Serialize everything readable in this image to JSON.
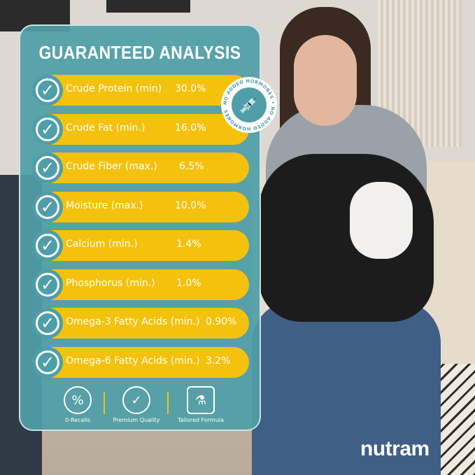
{
  "title": "GUARANTEED ANALYSIS",
  "rows": [
    {
      "label": "Crude Protein (min)",
      "value": "30.0%"
    },
    {
      "label": "Crude Fat (min.)",
      "value": "16.0%"
    },
    {
      "label": "Crude Fiber (max.)",
      "value": "6.5%"
    },
    {
      "label": "Moisture (max.)",
      "value": "10.0%"
    },
    {
      "label": "Calcium (min.)",
      "value": "1.4%"
    },
    {
      "label": "Phosphorus (min.)",
      "value": "1.0%"
    },
    {
      "label": "Omega-3 Fatty Acids (min.)",
      "value": "0.90%"
    },
    {
      "label": "Omega-6 Fatty Acids (min.)",
      "value": "3.2%"
    }
  ],
  "badge": {
    "text": "NO ADDED HORMONES",
    "icon": "syringe-icon"
  },
  "features": [
    {
      "label": "0-Recalls",
      "icon": "percent-cycle-icon"
    },
    {
      "label": "Premium Quality",
      "icon": "quality-seal-icon"
    },
    {
      "label": "Tailored Formula",
      "icon": "flask-icon"
    }
  ],
  "brand": "nutram",
  "colors": {
    "panel": "#4f9ea8",
    "pill": "#f4c20d",
    "text": "#ffffff"
  }
}
